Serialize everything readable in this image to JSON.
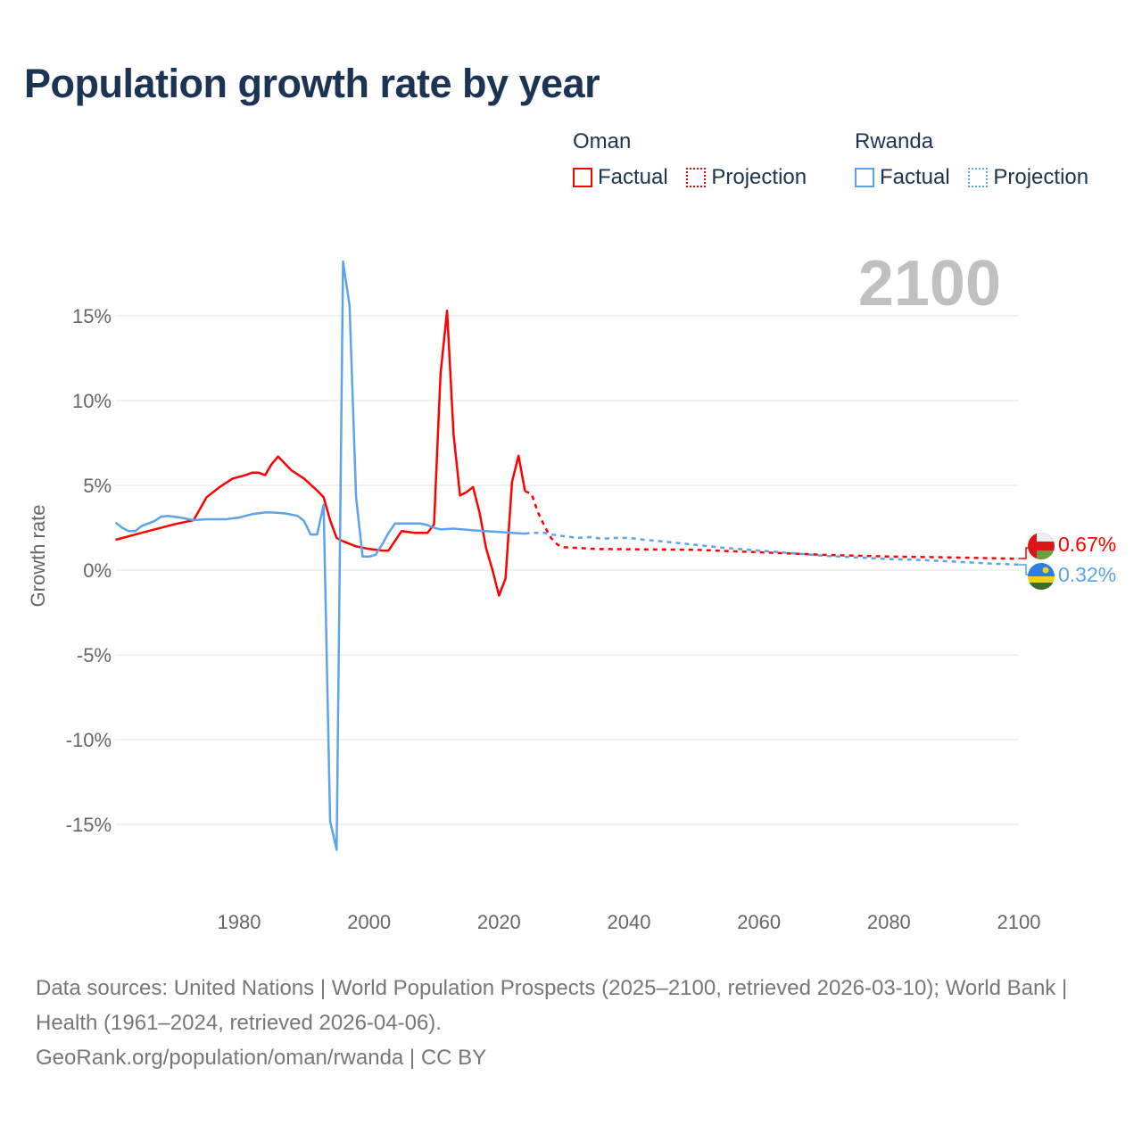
{
  "title": "Population growth rate by year",
  "legend": [
    {
      "country": "Oman",
      "color": "#ff0000",
      "factual_label": "Factual",
      "projection_label": "Projection"
    },
    {
      "country": "Rwanda",
      "color": "#5ba3ea",
      "factual_label": "Factual",
      "projection_label": "Projection"
    }
  ],
  "year_watermark": "2100",
  "end_labels": {
    "oman": "0.67%",
    "rwanda": "0.32%"
  },
  "footer": {
    "sources": "Data sources: United Nations | World Population Prospects (2025–2100, retrieved 2026-03-10); World Bank | Health (1961–2024, retrieved 2026-04-06).",
    "credit": "GeoRank.org/population/oman/rwanda | CC BY"
  },
  "chart_data": {
    "type": "line",
    "title": "Population growth rate by year",
    "xlabel": "",
    "ylabel": "Growth rate",
    "xlim": [
      1961,
      2100
    ],
    "ylim": [
      -20,
      20
    ],
    "x_ticks": [
      "1980",
      "2000",
      "2020",
      "2040",
      "2060",
      "2080",
      "2100"
    ],
    "y_ticks": [
      "15%",
      "10%",
      "5%",
      "0%",
      "-5%",
      "-10%",
      "-15%"
    ],
    "series": [
      {
        "name": "Oman Factual",
        "color": "#ff0000",
        "dashed": false,
        "points": [
          [
            1961,
            1.79
          ],
          [
            1965,
            2.2
          ],
          [
            1970,
            2.7
          ],
          [
            1973,
            2.95
          ],
          [
            1975,
            4.3
          ],
          [
            1977,
            4.9
          ],
          [
            1979,
            5.4
          ],
          [
            1981,
            5.6
          ],
          [
            1982,
            5.75
          ],
          [
            1983,
            5.75
          ],
          [
            1984,
            5.6
          ],
          [
            1985,
            6.25
          ],
          [
            1986,
            6.7
          ],
          [
            1987,
            6.3
          ],
          [
            1988,
            5.9
          ],
          [
            1990,
            5.4
          ],
          [
            1992,
            4.7
          ],
          [
            1993,
            4.3
          ],
          [
            1994,
            2.95
          ],
          [
            1995,
            1.9
          ],
          [
            1996,
            1.7
          ],
          [
            1998,
            1.4
          ],
          [
            2000,
            1.25
          ],
          [
            2002,
            1.15
          ],
          [
            2003,
            1.15
          ],
          [
            2005,
            2.3
          ],
          [
            2006,
            2.25
          ],
          [
            2007,
            2.2
          ],
          [
            2009,
            2.2
          ],
          [
            2010,
            2.7
          ],
          [
            2011,
            11.6
          ],
          [
            2012,
            15.3
          ],
          [
            2013,
            8.0
          ],
          [
            2014,
            4.4
          ],
          [
            2015,
            4.6
          ],
          [
            2016,
            4.9
          ],
          [
            2017,
            3.4
          ],
          [
            2018,
            1.3
          ],
          [
            2019,
            0.0
          ],
          [
            2020,
            -1.5
          ],
          [
            2021,
            -0.5
          ],
          [
            2022,
            5.2
          ],
          [
            2023,
            6.75
          ],
          [
            2024,
            4.65
          ]
        ]
      },
      {
        "name": "Oman Projection",
        "color": "#ff0000",
        "dashed": true,
        "points": [
          [
            2024,
            4.65
          ],
          [
            2025,
            4.5
          ],
          [
            2026,
            3.4
          ],
          [
            2027,
            2.6
          ],
          [
            2028,
            1.9
          ],
          [
            2029,
            1.5
          ],
          [
            2030,
            1.35
          ],
          [
            2035,
            1.25
          ],
          [
            2050,
            1.2
          ],
          [
            2060,
            1.05
          ],
          [
            2070,
            0.9
          ],
          [
            2080,
            0.8
          ],
          [
            2090,
            0.75
          ],
          [
            2100,
            0.67
          ]
        ]
      },
      {
        "name": "Rwanda Factual",
        "color": "#5ba3ea",
        "dashed": false,
        "points": [
          [
            1961,
            2.8
          ],
          [
            1962,
            2.5
          ],
          [
            1963,
            2.3
          ],
          [
            1964,
            2.3
          ],
          [
            1965,
            2.6
          ],
          [
            1966,
            2.75
          ],
          [
            1967,
            2.9
          ],
          [
            1968,
            3.15
          ],
          [
            1969,
            3.2
          ],
          [
            1971,
            3.1
          ],
          [
            1973,
            2.95
          ],
          [
            1975,
            3.0
          ],
          [
            1978,
            3.0
          ],
          [
            1980,
            3.1
          ],
          [
            1982,
            3.3
          ],
          [
            1984,
            3.4
          ],
          [
            1985,
            3.4
          ],
          [
            1987,
            3.35
          ],
          [
            1989,
            3.2
          ],
          [
            1990,
            2.9
          ],
          [
            1991,
            2.1
          ],
          [
            1992,
            2.1
          ],
          [
            1993,
            3.85
          ],
          [
            1994,
            -14.8
          ],
          [
            1995,
            -16.5
          ],
          [
            1996,
            18.2
          ],
          [
            1997,
            15.6
          ],
          [
            1998,
            4.3
          ],
          [
            1999,
            0.8
          ],
          [
            2000,
            0.8
          ],
          [
            2001,
            0.9
          ],
          [
            2002,
            1.5
          ],
          [
            2003,
            2.2
          ],
          [
            2004,
            2.75
          ],
          [
            2008,
            2.75
          ],
          [
            2009,
            2.65
          ],
          [
            2010,
            2.5
          ],
          [
            2011,
            2.4
          ],
          [
            2013,
            2.45
          ],
          [
            2016,
            2.35
          ],
          [
            2020,
            2.25
          ],
          [
            2022,
            2.2
          ],
          [
            2024,
            2.15
          ]
        ]
      },
      {
        "name": "Rwanda Projection",
        "color": "#5ba3ea",
        "dashed": true,
        "points": [
          [
            2024,
            2.15
          ],
          [
            2025,
            2.2
          ],
          [
            2027,
            2.2
          ],
          [
            2028,
            2.1
          ],
          [
            2030,
            2.0
          ],
          [
            2032,
            1.9
          ],
          [
            2034,
            1.95
          ],
          [
            2036,
            1.85
          ],
          [
            2038,
            1.9
          ],
          [
            2040,
            1.9
          ],
          [
            2042,
            1.8
          ],
          [
            2045,
            1.7
          ],
          [
            2050,
            1.5
          ],
          [
            2055,
            1.3
          ],
          [
            2060,
            1.15
          ],
          [
            2065,
            1.0
          ],
          [
            2070,
            0.85
          ],
          [
            2075,
            0.75
          ],
          [
            2080,
            0.65
          ],
          [
            2085,
            0.6
          ],
          [
            2090,
            0.5
          ],
          [
            2095,
            0.4
          ],
          [
            2100,
            0.32
          ]
        ]
      }
    ]
  }
}
